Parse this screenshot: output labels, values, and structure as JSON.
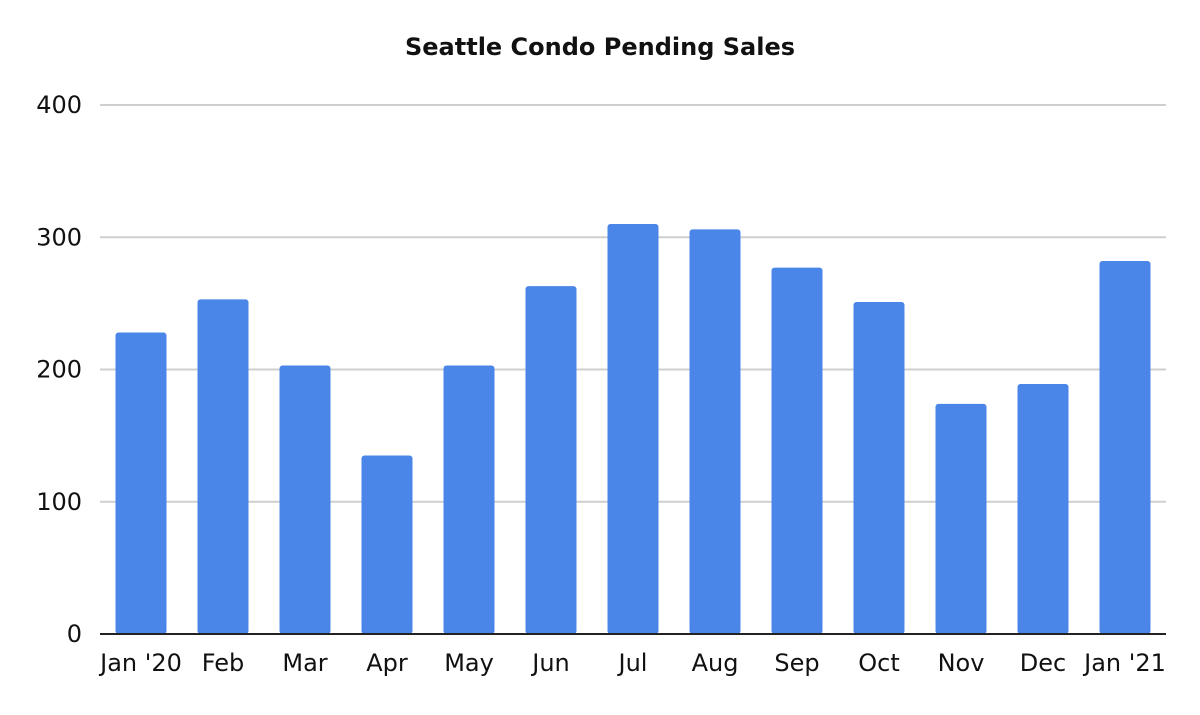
{
  "chart_data": {
    "type": "bar",
    "title": "Seattle Condo Pending Sales",
    "xlabel": "",
    "ylabel": "",
    "categories": [
      "Jan '20",
      "Feb",
      "Mar",
      "Apr",
      "May",
      "Jun",
      "Jul",
      "Aug",
      "Sep",
      "Oct",
      "Nov",
      "Dec",
      "Jan '21"
    ],
    "values": [
      228,
      253,
      203,
      135,
      203,
      263,
      310,
      306,
      277,
      251,
      174,
      189,
      282
    ],
    "ylim": [
      0,
      400
    ],
    "yticks": [
      0,
      100,
      200,
      300,
      400
    ],
    "grid": true,
    "legend": "none",
    "bar_color": "#4a86e8",
    "gridline_color": "#cfcfcf",
    "axis_color": "#222222"
  }
}
